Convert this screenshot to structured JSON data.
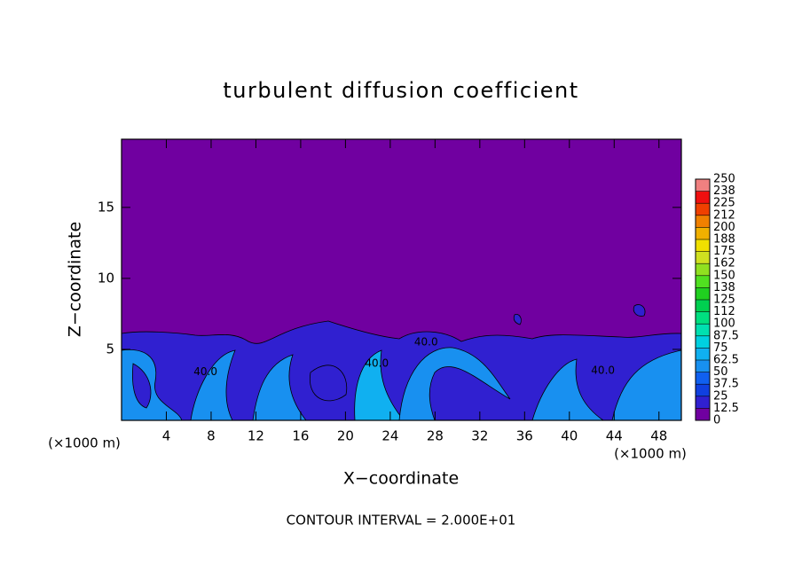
{
  "chart_data": {
    "type": "contour",
    "title": "turbulent diffusion coefficient",
    "x_label": "X−coordinate",
    "y_label": "Z−coordinate",
    "x_unit_label": "(×1000 m)",
    "y_unit_label": "(×1000 m)",
    "footer": "CONTOUR INTERVAL = 2.000E+01",
    "xlim": [
      0,
      50
    ],
    "ylim": [
      0,
      19.8
    ],
    "xticks": [
      4,
      8,
      12,
      16,
      20,
      24,
      28,
      32,
      36,
      40,
      44,
      48
    ],
    "yticks": [
      5,
      10,
      15
    ],
    "contour_labels": [
      {
        "label": "40.0",
        "x": 27.2,
        "y": 5.5
      },
      {
        "label": "40.0",
        "x": 7.5,
        "y": 3.4
      },
      {
        "label": "40.0",
        "x": 22.8,
        "y": 4.0
      },
      {
        "label": "40.0",
        "x": 43.0,
        "y": 3.5
      }
    ],
    "colorbar": {
      "levels": [
        0,
        12.5,
        25,
        37.5,
        50,
        62.5,
        75,
        87.5,
        100,
        {
          "value": 112.5,
          "label": "112"
        },
        125,
        {
          "value": 137.5,
          "label": "138"
        },
        150,
        {
          "value": 162.5,
          "label": "162"
        },
        175,
        {
          "value": 187.5,
          "label": "188"
        },
        200,
        {
          "value": 212.5,
          "label": "212"
        },
        225,
        {
          "value": 237.5,
          "label": "238"
        },
        250
      ],
      "colors": [
        "#7000a0",
        "#3020d0",
        "#1040e0",
        "#1060f0",
        "#1890f0",
        "#10b0f0",
        "#00d0e0",
        "#00e0b0",
        "#00e080",
        "#00d050",
        "#20d020",
        "#50e020",
        "#90e020",
        "#d0e020",
        "#f0e000",
        "#f0b000",
        "#f08000",
        "#f04000",
        "#f01010",
        "#f08080"
      ]
    }
  }
}
